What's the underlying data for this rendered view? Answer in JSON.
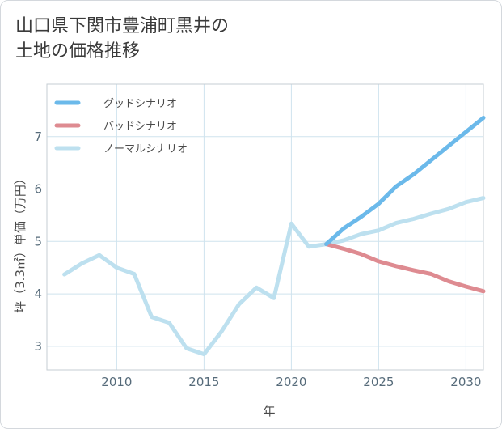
{
  "title_lines": [
    "山口県下関市豊浦町黒井の",
    "土地の価格推移"
  ],
  "chart_data": {
    "type": "line",
    "title": "山口県下関市豊浦町黒井の土地の価格推移",
    "xlabel": "年",
    "ylabel": "坪（3.3㎡）単価（万円）",
    "xlim": [
      2006,
      2031
    ],
    "ylim": [
      2.55,
      8.0
    ],
    "xticks": [
      2010,
      2015,
      2020,
      2025,
      2030
    ],
    "yticks": [
      3,
      4,
      5,
      6,
      7
    ],
    "grid": true,
    "legend_position": "top-left",
    "series": [
      {
        "name": "グッドシナリオ",
        "color": "#6bb9ea",
        "x": [
          2022,
          2023,
          2024,
          2025,
          2026,
          2027,
          2028,
          2029,
          2030,
          2031
        ],
        "values": [
          4.95,
          5.25,
          5.47,
          5.72,
          6.05,
          6.28,
          6.55,
          6.82,
          7.09,
          7.36
        ]
      },
      {
        "name": "バッドシナリオ",
        "color": "#de8b91",
        "x": [
          2022,
          2023,
          2024,
          2025,
          2026,
          2027,
          2028,
          2029,
          2030,
          2031
        ],
        "values": [
          4.95,
          4.86,
          4.76,
          4.62,
          4.53,
          4.45,
          4.38,
          4.24,
          4.14,
          4.05
        ]
      },
      {
        "name": "ノーマルシナリオ",
        "color": "#bde0ef",
        "x": [
          2007,
          2008,
          2009,
          2010,
          2011,
          2012,
          2013,
          2014,
          2015,
          2016,
          2017,
          2018,
          2019,
          2020,
          2021,
          2022,
          2023,
          2024,
          2025,
          2026,
          2027,
          2028,
          2029,
          2030,
          2031
        ],
        "values": [
          4.37,
          4.58,
          4.74,
          4.5,
          4.38,
          3.56,
          3.45,
          2.96,
          2.85,
          3.28,
          3.8,
          4.12,
          3.92,
          5.34,
          4.9,
          4.95,
          5.02,
          5.14,
          5.21,
          5.35,
          5.43,
          5.53,
          5.62,
          5.75,
          5.83
        ]
      }
    ]
  }
}
